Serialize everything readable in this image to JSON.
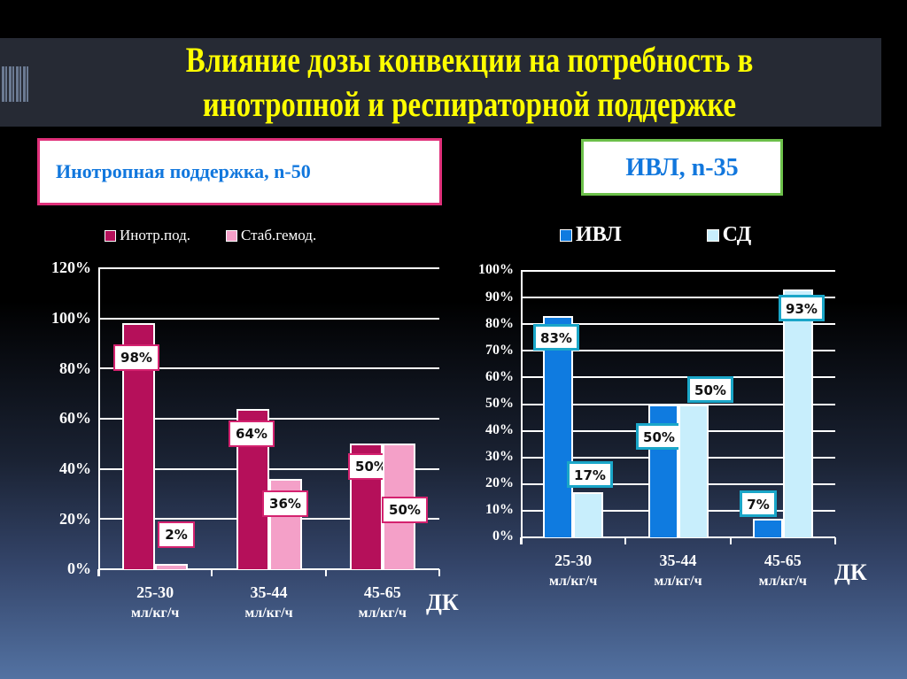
{
  "title": {
    "line1": "Влияние дозы конвекции на потребность в",
    "line2": "инотропной и респираторной поддержке"
  },
  "colors": {
    "title": "#ffff00",
    "left_primary": "#b5105a",
    "left_secondary": "#f4a0c8",
    "right_primary": "#0f7be0",
    "right_secondary": "#c8eefc",
    "left_box_border": "#e0307a",
    "right_box_border": "#6cc04a"
  },
  "chart_data": [
    {
      "type": "bar",
      "title": "Инотропная поддержка, n-50",
      "categories": [
        "25-30 мл/кг/ч",
        "35-44 мл/кг/ч",
        "45-65 мл/кг/ч"
      ],
      "category_labels": [
        {
          "range": "25-30",
          "unit": "мл/кг/ч"
        },
        {
          "range": "35-44",
          "unit": "мл/кг/ч"
        },
        {
          "range": "45-65",
          "unit": "мл/кг/ч"
        }
      ],
      "series": [
        {
          "name": "Инотр.под.",
          "values": [
            98,
            64,
            50
          ],
          "labels": [
            "98%",
            "64%",
            "50%"
          ]
        },
        {
          "name": "Стаб.гемод.",
          "values": [
            2,
            36,
            50
          ],
          "labels": [
            "2%",
            "36%",
            "50%"
          ]
        }
      ],
      "xlabel": "ДК",
      "ylabel": "",
      "ylim": [
        0,
        120
      ],
      "yticks": [
        "0%",
        "20%",
        "40%",
        "60%",
        "80%",
        "100%",
        "120%"
      ],
      "grid": true,
      "legend_position": "top"
    },
    {
      "type": "bar",
      "title": "ИВЛ, n-35",
      "categories": [
        "25-30 мл/кг/ч",
        "35-44 мл/кг/ч",
        "45-65 мл/кг/ч"
      ],
      "category_labels": [
        {
          "range": "25-30",
          "unit": "мл/кг/ч"
        },
        {
          "range": "35-44",
          "unit": "мл/кг/ч"
        },
        {
          "range": "45-65",
          "unit": "мл/кг/ч"
        }
      ],
      "series": [
        {
          "name": "ИВЛ",
          "values": [
            83,
            50,
            7
          ],
          "labels": [
            "83%",
            "50%",
            "7%"
          ]
        },
        {
          "name": "СД",
          "values": [
            17,
            50,
            93
          ],
          "labels": [
            "17%",
            "50%",
            "93%"
          ]
        }
      ],
      "xlabel": "ДК",
      "ylabel": "",
      "ylim": [
        0,
        100
      ],
      "yticks": [
        "0%",
        "10%",
        "20%",
        "30%",
        "40%",
        "50%",
        "60%",
        "70%",
        "80%",
        "90%",
        "100%"
      ],
      "grid": true,
      "legend_position": "top"
    }
  ]
}
